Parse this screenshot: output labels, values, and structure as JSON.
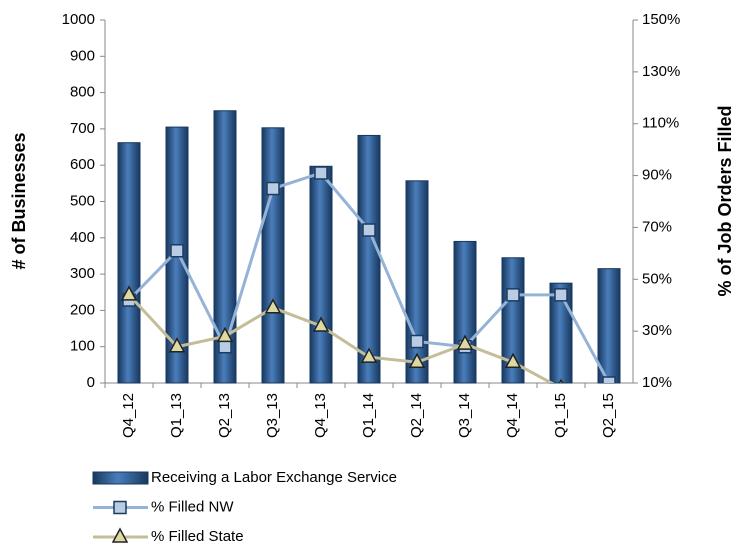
{
  "chart_data": {
    "type": "bar-line",
    "y_label": "# of Businesses",
    "y2_label": "% of Job Orders Filled",
    "categories": [
      "Q4_12",
      "Q1_13",
      "Q2_13",
      "Q3_13",
      "Q4_13",
      "Q1_14",
      "Q2_14",
      "Q3_14",
      "Q4_14",
      "Q1_15",
      "Q2_15"
    ],
    "series": [
      {
        "name": "Receiving a Labor Exchange Service",
        "type": "bar",
        "color": "#1f4e8c",
        "values": [
          662,
          705,
          750,
          703,
          597,
          682,
          557,
          390,
          345,
          275,
          315
        ]
      },
      {
        "name": "% Filled NW",
        "type": "line",
        "axis": "y2",
        "color": "#95b3d7",
        "marker": "square",
        "values": [
          42,
          61,
          24,
          85,
          91,
          69,
          26,
          24,
          44,
          44,
          10
        ]
      },
      {
        "name": "% Filled State",
        "type": "line",
        "axis": "y2",
        "color": "#c4bd97",
        "marker": "triangle",
        "values": [
          44,
          24,
          28,
          39,
          32,
          20,
          18,
          25,
          18,
          8,
          null
        ]
      }
    ],
    "ylim": [
      0,
      1000
    ],
    "yticks": [
      0,
      100,
      200,
      300,
      400,
      500,
      600,
      700,
      800,
      900,
      1000
    ],
    "y2lim": [
      10,
      150
    ],
    "y2ticks": [
      {
        "value": 10,
        "label": "10%"
      },
      {
        "value": 30,
        "label": "30%"
      },
      {
        "value": 50,
        "label": "50%"
      },
      {
        "value": 70,
        "label": "70%"
      },
      {
        "value": 90,
        "label": "90%"
      },
      {
        "value": 110,
        "label": "110%"
      },
      {
        "value": 130,
        "label": "130%"
      },
      {
        "value": 150,
        "label": "150%"
      }
    ],
    "legend": "bottom"
  }
}
